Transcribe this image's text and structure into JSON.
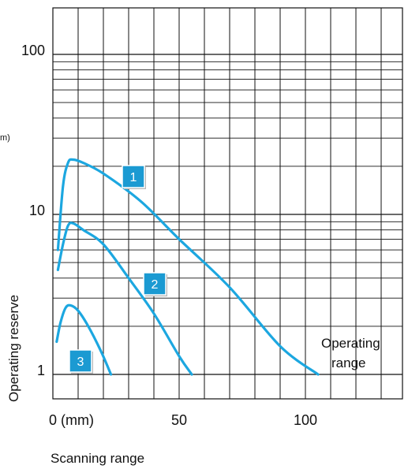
{
  "chart_data": {
    "type": "line",
    "title": "",
    "xlabel": "Scanning range",
    "ylabel": "Operating reserve",
    "x_unit": "(mm)",
    "y_unit_fragment": "m)",
    "y_scale": "log",
    "xlim": [
      0,
      140
    ],
    "ylim": [
      0.8,
      300
    ],
    "x_ticks": [
      {
        "value": 0,
        "label": "0 (mm)"
      },
      {
        "value": 50,
        "label": "50"
      },
      {
        "value": 100,
        "label": "100"
      }
    ],
    "y_ticks": [
      {
        "value": 1,
        "label": "1"
      },
      {
        "value": 10,
        "label": "10"
      },
      {
        "value": 100,
        "label": "100"
      }
    ],
    "grid": true,
    "line_color": "#1ca7e0",
    "badge_color": "#1b9ad2",
    "series": [
      {
        "badge": "1",
        "x": [
          2,
          4,
          6,
          8,
          12,
          20,
          35,
          50,
          70,
          90,
          105
        ],
        "y": [
          6,
          15,
          21,
          22,
          21,
          18,
          12,
          7,
          3.5,
          1.5,
          1
        ]
      },
      {
        "badge": "2",
        "x": [
          2,
          4,
          6,
          8,
          12,
          20,
          30,
          40,
          50,
          55
        ],
        "y": [
          4.5,
          6.5,
          8.5,
          8.8,
          8,
          6.5,
          4,
          2.4,
          1.3,
          1
        ]
      },
      {
        "badge": "3",
        "x": [
          1.5,
          3,
          5,
          7,
          10,
          14,
          19,
          23
        ],
        "y": [
          1.6,
          2.1,
          2.6,
          2.7,
          2.5,
          2,
          1.4,
          1
        ]
      }
    ],
    "annotation": {
      "line1": "Operating",
      "line2": "range"
    }
  }
}
